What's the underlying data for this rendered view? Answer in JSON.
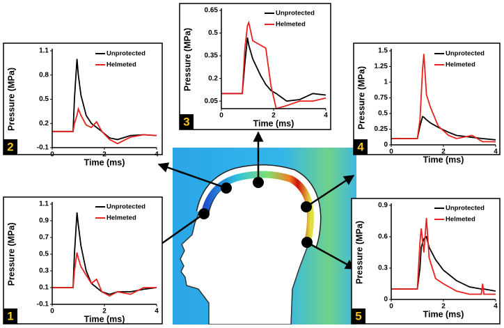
{
  "chart_data": [
    {
      "type": "line",
      "label": "1",
      "xlabel": "Time (ms)",
      "ylabel": "Pressure (MPa)",
      "x": [
        0,
        0.5,
        0.8,
        0.85,
        0.95,
        1.0,
        1.1,
        1.3,
        1.5,
        1.7,
        1.9,
        2.2,
        2.5,
        3,
        3.5,
        4
      ],
      "series": [
        {
          "name": "Unprotected",
          "color": "#000000",
          "values": [
            0.1,
            0.1,
            0.1,
            0.5,
            1.0,
            0.85,
            0.6,
            0.3,
            0.15,
            0.1,
            0.05,
            0.02,
            0.05,
            0.05,
            0.08,
            0.1
          ]
        },
        {
          "name": "Helmeted",
          "color": "#e8201e",
          "values": [
            0.1,
            0.1,
            0.1,
            0.3,
            0.52,
            0.45,
            0.35,
            0.25,
            0.15,
            0.2,
            0.05,
            0.0,
            0.05,
            0.02,
            0.1,
            0.1
          ]
        }
      ],
      "xlim": [
        0,
        4
      ],
      "xticks": [
        0,
        2,
        4
      ],
      "ylim": [
        -0.1,
        1.1
      ],
      "yticks": [
        -0.1,
        0.1,
        0.3,
        0.5,
        0.7,
        0.9,
        1.1
      ]
    },
    {
      "type": "line",
      "label": "2",
      "xlabel": "Time (ms)",
      "ylabel": "Pressure (MPa)",
      "x": [
        0,
        0.5,
        0.8,
        0.85,
        0.95,
        1.0,
        1.1,
        1.3,
        1.5,
        1.7,
        1.9,
        2.2,
        2.5,
        3,
        3.5,
        4
      ],
      "series": [
        {
          "name": "Unprotected",
          "color": "#000000",
          "values": [
            0.1,
            0.1,
            0.1,
            0.5,
            1.0,
            0.8,
            0.55,
            0.3,
            0.2,
            0.15,
            0.1,
            0.02,
            0.0,
            0.05,
            0.06,
            0.05
          ]
        },
        {
          "name": "Helmeted",
          "color": "#e8201e",
          "values": [
            0.1,
            0.1,
            0.1,
            0.2,
            0.3,
            0.38,
            0.3,
            0.18,
            0.15,
            0.22,
            0.1,
            0.0,
            -0.05,
            0.03,
            0.06,
            0.05
          ]
        }
      ],
      "xlim": [
        0,
        4
      ],
      "xticks": [
        0,
        2,
        4
      ],
      "ylim": [
        -0.1,
        1.1
      ],
      "yticks": [
        -0.1,
        0.2,
        0.5,
        0.8,
        1.1
      ]
    },
    {
      "type": "line",
      "label": "3",
      "xlabel": "Time (ms)",
      "ylabel": "Pressure (MPa)",
      "x": [
        0,
        0.5,
        0.8,
        0.9,
        1.0,
        1.05,
        1.2,
        1.5,
        1.7,
        1.9,
        2.1,
        2.5,
        3,
        3.5,
        4
      ],
      "series": [
        {
          "name": "Unprotected",
          "color": "#000000",
          "values": [
            0.1,
            0.1,
            0.1,
            0.3,
            0.47,
            0.42,
            0.33,
            0.22,
            0.16,
            0.12,
            0.1,
            0.05,
            0.06,
            0.1,
            0.09
          ]
        },
        {
          "name": "Helmeted",
          "color": "#e8201e",
          "values": [
            0.1,
            0.1,
            0.1,
            0.4,
            0.55,
            0.57,
            0.45,
            0.42,
            0.4,
            0.15,
            0.0,
            0.02,
            0.05,
            0.05,
            0.07
          ]
        }
      ],
      "xlim": [
        0,
        4
      ],
      "xticks": [
        0,
        2,
        4
      ],
      "ylim": [
        0,
        0.65
      ],
      "yticks": [
        0.05,
        0.2,
        0.35,
        0.5,
        0.65
      ]
    },
    {
      "type": "line",
      "label": "4",
      "xlabel": "Time (ms)",
      "ylabel": "Pressure (MPa)",
      "x": [
        0,
        0.5,
        1.0,
        1.1,
        1.2,
        1.25,
        1.35,
        1.5,
        1.8,
        2.2,
        2.5,
        3.1,
        3.5,
        4
      ],
      "series": [
        {
          "name": "Unprotected",
          "color": "#000000",
          "values": [
            0.1,
            0.1,
            0.1,
            0.3,
            0.45,
            0.44,
            0.4,
            0.35,
            0.28,
            0.2,
            0.15,
            0.12,
            0.1,
            0.08
          ]
        },
        {
          "name": "Helmeted",
          "color": "#e8201e",
          "values": [
            0.1,
            0.1,
            0.1,
            0.4,
            1.2,
            1.45,
            0.8,
            0.6,
            0.3,
            0.15,
            0.1,
            0.15,
            0.05,
            0.05
          ]
        }
      ],
      "xlim": [
        0,
        4
      ],
      "xticks": [
        0,
        2,
        4
      ],
      "ylim": [
        0,
        1.5
      ],
      "yticks": [
        0,
        0.25,
        0.5,
        0.75,
        1,
        1.25,
        1.5
      ]
    },
    {
      "type": "line",
      "label": "5",
      "xlabel": "Time (ms)",
      "ylabel": "Pressure (MPa)",
      "x": [
        0,
        0.5,
        1.0,
        1.1,
        1.15,
        1.25,
        1.35,
        1.45,
        1.7,
        2.0,
        2.5,
        3,
        3.45,
        3.5,
        3.55,
        4
      ],
      "series": [
        {
          "name": "Unprotected",
          "color": "#000000",
          "values": [
            0.1,
            0.1,
            0.1,
            0.3,
            0.5,
            0.58,
            0.6,
            0.5,
            0.38,
            0.28,
            0.18,
            0.12,
            0.1,
            0.1,
            0.1,
            0.08
          ]
        },
        {
          "name": "Helmeted",
          "color": "#e8201e",
          "values": [
            0.1,
            0.1,
            0.1,
            0.55,
            0.68,
            0.45,
            0.78,
            0.4,
            0.2,
            0.15,
            0.08,
            0.05,
            0.05,
            0.15,
            0.05,
            0.05
          ]
        }
      ],
      "xlim": [
        0,
        4
      ],
      "xticks": [
        0,
        2,
        4
      ],
      "ylim": [
        0,
        0.9
      ],
      "yticks": [
        0,
        0.3,
        0.6,
        0.9
      ]
    }
  ]
}
